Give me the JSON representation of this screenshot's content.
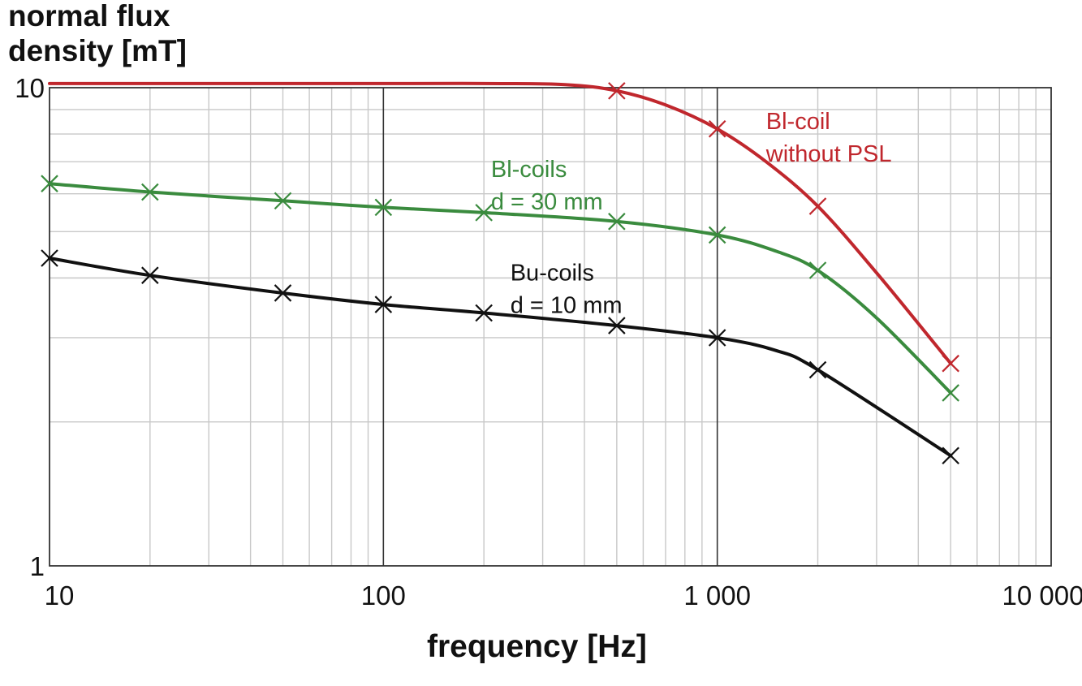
{
  "chart_data": {
    "type": "line",
    "title": "",
    "ylabel_lines": [
      "normal flux",
      "density [mT]"
    ],
    "xlabel": "frequency  [Hz]",
    "xscale": "log",
    "yscale": "log",
    "xlim": [
      10,
      10000
    ],
    "ylim": [
      1,
      10
    ],
    "grid": true,
    "x_tick_labels": [
      {
        "value": 10,
        "label": "10"
      },
      {
        "value": 100,
        "label": "100"
      },
      {
        "value": 1000,
        "label": "1 000"
      },
      {
        "value": 10000,
        "label": "10 000"
      }
    ],
    "y_tick_labels": [
      {
        "value": 10,
        "label": "10"
      },
      {
        "value": 1,
        "label": "1"
      }
    ],
    "series": [
      {
        "name": "Bl-coil without PSL",
        "label_lines": [
          "Bl-coil",
          "without PSL"
        ],
        "label_anchor": {
          "x": 1400,
          "y": 8.2
        },
        "color": "#c0272d",
        "line_x": [
          10,
          100,
          200,
          350,
          500,
          700,
          1000,
          1400,
          2000,
          3000,
          5000
        ],
        "line_y": [
          10.2,
          10.2,
          10.2,
          10.15,
          9.85,
          9.2,
          8.2,
          7.0,
          5.65,
          4.1,
          2.65
        ],
        "marker_x": [
          500,
          1000,
          2000,
          5000
        ],
        "marker_y": [
          9.85,
          8.2,
          5.65,
          2.65
        ]
      },
      {
        "name": "Bl-coils d = 30 mm",
        "label_lines": [
          "Bl-coils",
          "d =  30 mm"
        ],
        "label_anchor": {
          "x": 210,
          "y": 6.5
        },
        "color": "#3a8b3e",
        "line_x": [
          10,
          20,
          50,
          100,
          200,
          500,
          1000,
          1500,
          2000,
          3000,
          5000
        ],
        "line_y": [
          6.3,
          6.05,
          5.8,
          5.62,
          5.48,
          5.25,
          4.92,
          4.55,
          4.15,
          3.3,
          2.3
        ],
        "marker_x": [
          10,
          20,
          50,
          100,
          200,
          500,
          1000,
          2000,
          5000
        ],
        "marker_y": [
          6.3,
          6.05,
          5.8,
          5.62,
          5.48,
          5.25,
          4.92,
          4.15,
          2.3
        ]
      },
      {
        "name": "Bu-coils d = 10 mm",
        "label_lines": [
          "Bu-coils",
          "d = 10 mm"
        ],
        "label_anchor": {
          "x": 240,
          "y": 3.95
        },
        "color": "#111111",
        "line_x": [
          10,
          20,
          50,
          100,
          200,
          500,
          1000,
          1500,
          2000,
          5000
        ],
        "line_y": [
          4.4,
          4.05,
          3.72,
          3.52,
          3.38,
          3.18,
          3.0,
          2.82,
          2.57,
          1.7
        ],
        "marker_x": [
          10,
          20,
          50,
          100,
          200,
          500,
          1000,
          2000,
          5000
        ],
        "marker_y": [
          4.4,
          4.05,
          3.72,
          3.52,
          3.38,
          3.18,
          3.0,
          2.57,
          1.7
        ]
      }
    ]
  }
}
